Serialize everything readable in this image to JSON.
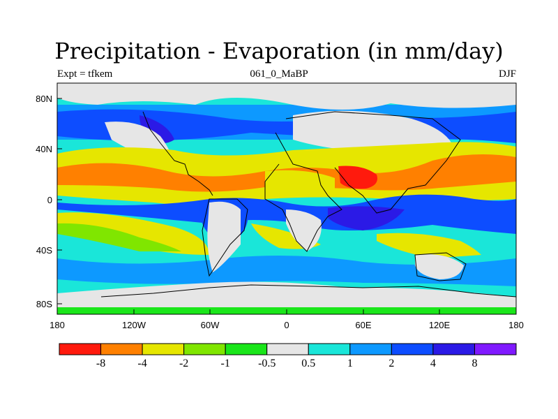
{
  "header": {
    "title": "Precipitation - Evaporation (in mm/day)",
    "left_label": "Expt = tfkem",
    "center_label": "061_0_MaBP",
    "right_label": "DJF"
  },
  "axes": {
    "lat_ticks": [
      "80N",
      "40N",
      "0",
      "40S",
      "80S"
    ],
    "lon_ticks": [
      "180",
      "120W",
      "60W",
      "0",
      "60E",
      "120E",
      "180"
    ]
  },
  "colorbar": {
    "colors": [
      "#ff1a0d",
      "#ff8000",
      "#e6e600",
      "#80e600",
      "#1ae61a",
      "#e6e6e6",
      "#1ae6d9",
      "#0d99ff",
      "#0d4dff",
      "#2b1ae6",
      "#8019ff"
    ],
    "labels": [
      "-8",
      "-4",
      "-2",
      "-1",
      "-0.5",
      "0.5",
      "1",
      "2",
      "4",
      "8"
    ]
  },
  "map_colors": {
    "dry_strong": "#ff1a0d",
    "dry": "#ff8000",
    "dry_moderate": "#e6e600",
    "dry_light": "#80e600",
    "dry_weak": "#1ae61a",
    "neutral": "#e6e6e6",
    "wet_weak": "#1ae6d9",
    "wet_light": "#0d99ff",
    "wet_moderate": "#0d4dff",
    "wet": "#2b1ae6",
    "wet_strong": "#8019ff",
    "coastline": "#000000"
  }
}
